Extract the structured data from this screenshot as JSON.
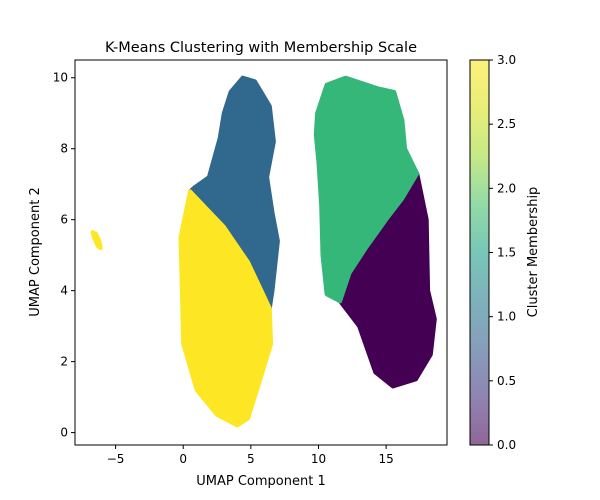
{
  "chart_data": {
    "type": "scatter",
    "title": "K-Means Clustering with Membership Scale",
    "xlabel": "UMAP Component 1",
    "ylabel": "UMAP Component 2",
    "xlim": [
      -8,
      19.5
    ],
    "ylim": [
      -0.35,
      10.5
    ],
    "xticks": [
      -5,
      0,
      5,
      10,
      15
    ],
    "yticks": [
      0,
      2,
      4,
      6,
      8,
      10
    ],
    "grid": false,
    "colorbar": {
      "label": "Cluster Membership",
      "range": [
        0.0,
        3.0
      ],
      "ticks": [
        "0.0",
        "0.5",
        "1.0",
        "1.5",
        "2.0",
        "2.5",
        "3.0"
      ],
      "colormap": "viridis"
    },
    "series": [
      {
        "cluster": 0,
        "color": "#440154",
        "polygon": [
          [
            17.3,
            7.3
          ],
          [
            18.0,
            6.0
          ],
          [
            18.1,
            4.0
          ],
          [
            18.6,
            3.2
          ],
          [
            18.3,
            2.2
          ],
          [
            17.2,
            1.5
          ],
          [
            15.5,
            1.3
          ],
          [
            14.2,
            1.7
          ],
          [
            13.0,
            3.0
          ],
          [
            11.8,
            3.6
          ],
          [
            11.6,
            3.7
          ],
          [
            12.3,
            4.5
          ],
          [
            13.5,
            5.2
          ],
          [
            15.0,
            6.0
          ],
          [
            16.2,
            6.6
          ]
        ]
      },
      {
        "cluster": 1,
        "color": "#31688e",
        "polygon": [
          [
            0.5,
            6.8
          ],
          [
            0.8,
            6.9
          ],
          [
            1.9,
            7.2
          ],
          [
            2.7,
            8.3
          ],
          [
            3.0,
            9.0
          ],
          [
            3.5,
            9.6
          ],
          [
            4.4,
            10.0
          ],
          [
            5.3,
            9.9
          ],
          [
            6.4,
            9.2
          ],
          [
            6.7,
            8.2
          ],
          [
            6.2,
            7.2
          ],
          [
            6.6,
            6.2
          ],
          [
            7.0,
            5.4
          ],
          [
            6.6,
            4.0
          ],
          [
            6.4,
            3.5
          ],
          [
            4.8,
            4.8
          ],
          [
            3.0,
            5.8
          ],
          [
            1.5,
            6.4
          ]
        ]
      },
      {
        "cluster": 2,
        "color": "#35b779",
        "polygon": [
          [
            9.9,
            9.0
          ],
          [
            10.6,
            9.8
          ],
          [
            12.0,
            10.0
          ],
          [
            14.4,
            9.7
          ],
          [
            15.6,
            9.6
          ],
          [
            16.2,
            8.8
          ],
          [
            16.4,
            8.0
          ],
          [
            17.3,
            7.3
          ],
          [
            16.2,
            6.6
          ],
          [
            15.0,
            6.0
          ],
          [
            13.5,
            5.2
          ],
          [
            12.3,
            4.5
          ],
          [
            11.6,
            3.7
          ],
          [
            10.6,
            3.9
          ],
          [
            10.3,
            5.0
          ],
          [
            10.2,
            6.4
          ],
          [
            10.0,
            7.6
          ],
          [
            9.8,
            8.4
          ]
        ]
      },
      {
        "cluster": 3,
        "color": "#fde725",
        "polygon": [
          [
            0.5,
            6.8
          ],
          [
            1.5,
            6.4
          ],
          [
            3.0,
            5.8
          ],
          [
            4.8,
            4.8
          ],
          [
            6.4,
            3.5
          ],
          [
            6.5,
            2.5
          ],
          [
            5.7,
            1.5
          ],
          [
            4.8,
            0.4
          ],
          [
            4.0,
            0.2
          ],
          [
            2.5,
            0.5
          ],
          [
            1.0,
            1.2
          ],
          [
            0.0,
            2.5
          ],
          [
            -0.1,
            4.0
          ],
          [
            -0.2,
            5.5
          ]
        ]
      },
      {
        "cluster": 3,
        "color": "#fde725",
        "polygon": [
          [
            -6.7,
            5.65
          ],
          [
            -6.45,
            5.6
          ],
          [
            -6.2,
            5.4
          ],
          [
            -6.1,
            5.2
          ],
          [
            -6.3,
            5.25
          ],
          [
            -6.6,
            5.5
          ]
        ]
      }
    ]
  }
}
